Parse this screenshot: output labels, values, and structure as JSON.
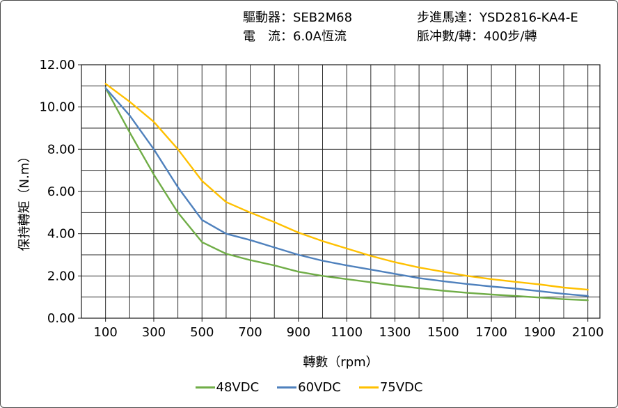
{
  "header": {
    "driver": "驅動器：SEB2M68",
    "current": "電　流：6.0A恆流",
    "motor": "步進馬達：YSD2816-KA4-E",
    "pulses": "脈冲數/轉：400步/轉"
  },
  "chart_data": {
    "type": "line",
    "title": "",
    "xlabel": "轉數（rpm）",
    "ylabel": "保持轉矩（N.m）",
    "xlim": [
      0,
      2150
    ],
    "ylim": [
      0,
      12
    ],
    "grid": true,
    "x_grid_step": 100,
    "y_grid_step": 1,
    "x_tick_values": [
      100,
      300,
      500,
      700,
      900,
      1100,
      1300,
      1500,
      1700,
      1900,
      2100
    ],
    "x_tick_labels": [
      "100",
      "300",
      "500",
      "700",
      "900",
      "1100",
      "1300",
      "1500",
      "1700",
      "1900",
      "2100"
    ],
    "y_tick_values": [
      0,
      2,
      4,
      6,
      8,
      10,
      12
    ],
    "y_tick_labels": [
      "0.00",
      "2.00",
      "4.00",
      "6.00",
      "8.00",
      "10.00",
      "12.00"
    ],
    "legend_position": "bottom",
    "x": [
      100,
      200,
      300,
      400,
      500,
      600,
      700,
      800,
      900,
      1000,
      1100,
      1200,
      1300,
      1400,
      1500,
      1600,
      1700,
      1800,
      1900,
      2000,
      2100
    ],
    "series": [
      {
        "name": "48VDC",
        "color": "#70AD47",
        "values": [
          10.9,
          8.8,
          6.8,
          5.0,
          3.6,
          3.05,
          2.75,
          2.5,
          2.2,
          2.0,
          1.85,
          1.7,
          1.55,
          1.42,
          1.3,
          1.2,
          1.12,
          1.05,
          0.98,
          0.9,
          0.85
        ]
      },
      {
        "name": "60VDC",
        "color": "#4F81BD",
        "values": [
          10.9,
          9.6,
          8.0,
          6.2,
          4.65,
          4.0,
          3.7,
          3.35,
          3.0,
          2.72,
          2.5,
          2.3,
          2.1,
          1.9,
          1.75,
          1.62,
          1.5,
          1.4,
          1.28,
          1.15,
          1.05
        ]
      },
      {
        "name": "75VDC",
        "color": "#FFC000",
        "values": [
          11.1,
          10.25,
          9.3,
          8.0,
          6.5,
          5.5,
          5.0,
          4.55,
          4.05,
          3.65,
          3.3,
          2.95,
          2.65,
          2.4,
          2.2,
          2.0,
          1.85,
          1.72,
          1.6,
          1.45,
          1.35
        ]
      }
    ]
  }
}
